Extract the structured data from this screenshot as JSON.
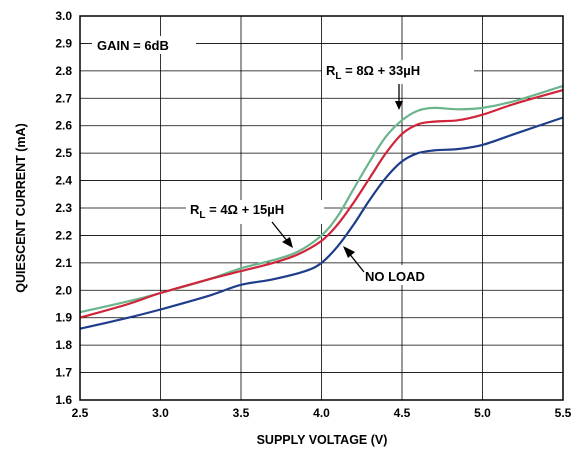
{
  "chart_data": {
    "type": "line",
    "xlabel": "SUPPLY VOLTAGE (V)",
    "ylabel": "QUIESCENT CURRENT (mA)",
    "xlim": [
      2.5,
      5.5
    ],
    "ylim": [
      1.6,
      3.0
    ],
    "xticks": [
      "2.5",
      "3.0",
      "3.5",
      "4.0",
      "4.5",
      "5.0",
      "5.5"
    ],
    "yticks": [
      "1.6",
      "1.7",
      "1.8",
      "1.9",
      "2.0",
      "2.1",
      "2.2",
      "2.3",
      "2.4",
      "2.5",
      "2.6",
      "2.7",
      "2.8",
      "2.9",
      "3.0"
    ],
    "grid": true,
    "annotations": {
      "gain": "GAIN = 6dB",
      "rl4_prefix": "R",
      "rl4_sub": "L",
      "rl4_suffix": " = 4Ω + 15µH",
      "rl8_prefix": "R",
      "rl8_sub": "L",
      "rl8_suffix": " = 8Ω + 33µH",
      "noload": "NO LOAD"
    },
    "colors": {
      "rl8": "#6cb48c",
      "rl4": "#d0243a",
      "noload": "#1e3d8a",
      "grid": "#000000"
    },
    "series": [
      {
        "key": "rl8",
        "x": [
          2.5,
          2.8,
          3.0,
          3.3,
          3.5,
          3.7,
          3.85,
          4.0,
          4.1,
          4.2,
          4.3,
          4.4,
          4.5,
          4.6,
          4.7,
          4.85,
          5.0,
          5.2,
          5.5
        ],
        "y": [
          1.92,
          1.96,
          1.99,
          2.04,
          2.08,
          2.11,
          2.14,
          2.2,
          2.27,
          2.37,
          2.47,
          2.56,
          2.62,
          2.655,
          2.665,
          2.66,
          2.665,
          2.69,
          2.745
        ]
      },
      {
        "key": "rl4",
        "x": [
          2.5,
          2.8,
          3.0,
          3.3,
          3.5,
          3.7,
          3.85,
          4.0,
          4.1,
          4.2,
          4.3,
          4.4,
          4.5,
          4.6,
          4.7,
          4.85,
          5.0,
          5.2,
          5.5
        ],
        "y": [
          1.9,
          1.95,
          1.99,
          2.04,
          2.07,
          2.1,
          2.13,
          2.18,
          2.24,
          2.32,
          2.41,
          2.5,
          2.57,
          2.605,
          2.615,
          2.62,
          2.64,
          2.68,
          2.73
        ]
      },
      {
        "key": "noload",
        "x": [
          2.5,
          2.8,
          3.0,
          3.3,
          3.5,
          3.7,
          3.9,
          4.0,
          4.1,
          4.2,
          4.3,
          4.4,
          4.5,
          4.6,
          4.7,
          4.85,
          5.0,
          5.2,
          5.5
        ],
        "y": [
          1.86,
          1.9,
          1.93,
          1.98,
          2.02,
          2.04,
          2.07,
          2.1,
          2.16,
          2.24,
          2.33,
          2.41,
          2.47,
          2.5,
          2.51,
          2.515,
          2.53,
          2.57,
          2.63
        ]
      }
    ]
  }
}
